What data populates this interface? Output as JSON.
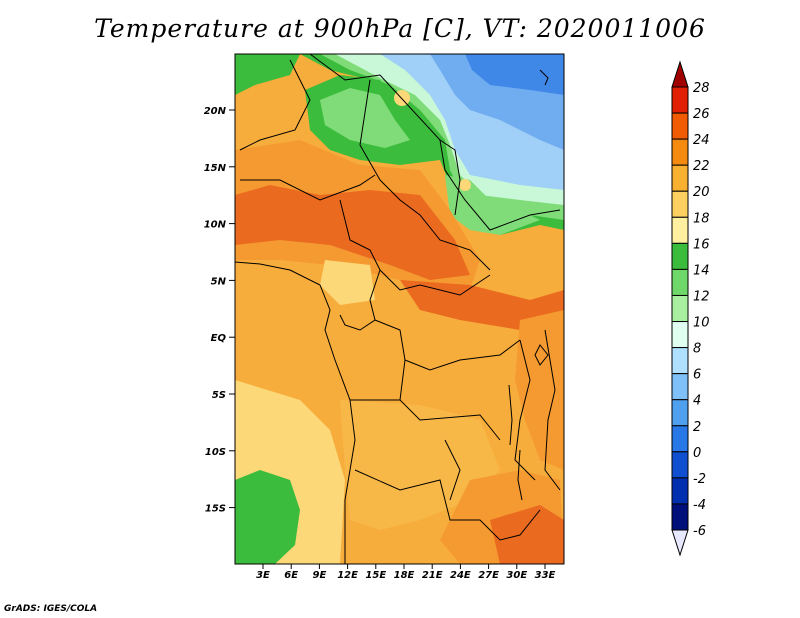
{
  "title": "Temperature at 900hPa [C], VT: 2020011006",
  "credit": "GrADS: IGES/COLA",
  "map": {
    "lat_labels": [
      "20N",
      "15N",
      "10N",
      "5N",
      "EQ",
      "5S",
      "10S",
      "15S"
    ],
    "lon_labels": [
      "3E",
      "6E",
      "9E",
      "12E",
      "15E",
      "18E",
      "21E",
      "24E",
      "27E",
      "30E",
      "33E"
    ]
  },
  "colorbar": {
    "labels": [
      "28",
      "26",
      "24",
      "22",
      "20",
      "18",
      "16",
      "14",
      "12",
      "10",
      "8",
      "6",
      "4",
      "2",
      "0",
      "-2",
      "-4",
      "-6"
    ],
    "colors": [
      "#a00000",
      "#e02000",
      "#f05a00",
      "#f58a10",
      "#f8b030",
      "#fcd060",
      "#fff0a0",
      "#3cbc3c",
      "#6ed86a",
      "#a8f0a0",
      "#e0fff0",
      "#b0e0ff",
      "#80c0f8",
      "#50a0f0",
      "#2878e8",
      "#1050d0",
      "#0030b0",
      "#00107a",
      "#e8e8ff"
    ]
  },
  "palette": {
    "dark_orange": "#ea6a20",
    "orange": "#f59a30",
    "light_orange": "#f8b848",
    "pale": "#fcd878",
    "green": "#3cbc3c",
    "light_green": "#80dc78",
    "mint": "#c8f8d8",
    "light_blue": "#a0d0f8",
    "blue": "#70acf0",
    "deep_blue": "#4088e8"
  }
}
